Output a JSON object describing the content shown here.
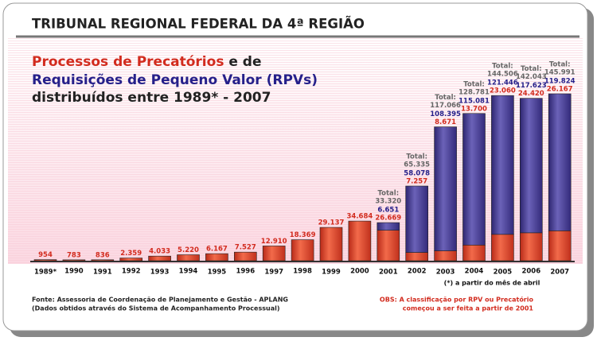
{
  "chart_data": {
    "type": "stacked_bar",
    "header": "TRIBUNAL REGIONAL FEDERAL DA 4ª REGIÃO",
    "title_parts": [
      "Processos de Precatórios",
      "e de",
      "Requisições de Pequeno Valor (RPVs)",
      "distribuídos entre 1989* - 2007"
    ],
    "categories": [
      "1989*",
      "1990",
      "1991",
      "1992",
      "1993",
      "1994",
      "1995",
      "1996",
      "1997",
      "1998",
      "1999",
      "2000",
      "2001",
      "2002",
      "2003",
      "2004",
      "2005",
      "2006",
      "2007"
    ],
    "series": [
      {
        "color": "#e2432c",
        "label_color": "#d22b1e",
        "values": [
          954,
          783,
          836,
          2359,
          4033,
          5220,
          6167,
          7527,
          12910,
          18369,
          29137,
          34684,
          26669,
          7257,
          8671,
          13700,
          23060,
          24420,
          26167
        ],
        "value_labels": [
          "954",
          "783",
          "836",
          "2.359",
          "4.033",
          "5.220",
          "6.167",
          "7.527",
          "12.910",
          "18.369",
          "29.137",
          "34.684",
          "26.669",
          "7.257",
          "8.671",
          "13.700",
          "23.060",
          "24.420",
          "26.167"
        ]
      },
      {
        "color": "#463c94",
        "label_color": "#25208a",
        "values": [
          null,
          null,
          null,
          null,
          null,
          null,
          null,
          null,
          null,
          null,
          null,
          null,
          6651,
          58078,
          108395,
          115081,
          121446,
          117623,
          119824
        ],
        "value_labels": [
          null,
          null,
          null,
          null,
          null,
          null,
          null,
          null,
          null,
          null,
          null,
          null,
          "6.651",
          "58.078",
          "108.395",
          "115.081",
          "121.446",
          "117.623",
          "119.824"
        ]
      }
    ],
    "total_label": "Total:",
    "totals": {
      "values": [
        null,
        null,
        null,
        null,
        null,
        null,
        null,
        null,
        null,
        null,
        null,
        null,
        33320,
        65335,
        117066,
        128781,
        144506,
        142043,
        145991
      ],
      "value_labels": [
        null,
        null,
        null,
        null,
        null,
        null,
        null,
        null,
        null,
        null,
        null,
        null,
        "33.320",
        "65.335",
        "117.066",
        "128.781",
        "144.506",
        "142.043",
        "145.991"
      ]
    },
    "footnote": "(*) a partir do mês de abril",
    "source": [
      "Fonte: Assessoria de Coordenação de Planejamento e Gestão - APLANG",
      "(Dados obtidos através do Sistema de Acompanhamento Processual)"
    ],
    "obs": [
      "OBS: A classificação por RPV ou Precatório",
      "começou a ser feita a partir de 2001"
    ]
  }
}
